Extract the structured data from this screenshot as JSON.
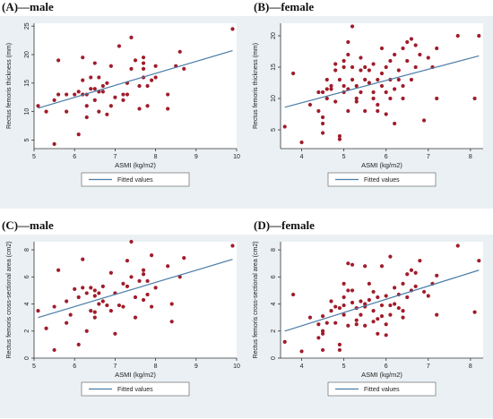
{
  "colors": {
    "point": "#a01c2a",
    "line": "#4a7ca6",
    "plot_bg": "#ffffff",
    "outer_bg": "#eaf0f4"
  },
  "chart_data": [
    {
      "id": "A",
      "type": "scatter",
      "title": "(A)—male",
      "xlabel": "ASMI (kg/m2)",
      "ylabel": "Rectus femoris thickness (mm)",
      "xlim": [
        5,
        10
      ],
      "ylim": [
        3.5,
        25.5
      ],
      "xticks": [
        5,
        6,
        7,
        8,
        9,
        10
      ],
      "yticks": [
        5,
        10,
        15,
        20,
        25
      ],
      "legend": {
        "label": "Fitted values",
        "position": "bottom"
      },
      "fit": {
        "x": [
          5.1,
          9.9
        ],
        "y": [
          10.6,
          20.7
        ]
      },
      "points": [
        [
          5.1,
          11
        ],
        [
          5.3,
          10
        ],
        [
          5.5,
          12
        ],
        [
          5.5,
          4.3
        ],
        [
          5.6,
          19
        ],
        [
          5.6,
          13
        ],
        [
          5.8,
          10
        ],
        [
          5.8,
          13
        ],
        [
          6.0,
          13
        ],
        [
          6.1,
          13.5
        ],
        [
          6.1,
          6
        ],
        [
          6.2,
          13
        ],
        [
          6.2,
          15.5
        ],
        [
          6.2,
          19.5
        ],
        [
          6.3,
          11
        ],
        [
          6.3,
          13
        ],
        [
          6.3,
          9
        ],
        [
          6.4,
          14
        ],
        [
          6.4,
          16
        ],
        [
          6.5,
          14
        ],
        [
          6.5,
          18.5
        ],
        [
          6.5,
          12
        ],
        [
          6.6,
          16
        ],
        [
          6.6,
          13.5
        ],
        [
          6.6,
          10
        ],
        [
          6.7,
          13.5
        ],
        [
          6.7,
          14.5
        ],
        [
          6.8,
          15
        ],
        [
          6.8,
          9.5
        ],
        [
          6.9,
          11
        ],
        [
          6.9,
          18
        ],
        [
          7.0,
          12.5
        ],
        [
          7.1,
          21.5
        ],
        [
          7.2,
          12
        ],
        [
          7.2,
          13
        ],
        [
          7.3,
          15
        ],
        [
          7.3,
          13
        ],
        [
          7.4,
          23
        ],
        [
          7.4,
          17.5
        ],
        [
          7.5,
          19
        ],
        [
          7.6,
          14.5
        ],
        [
          7.6,
          10.5
        ],
        [
          7.7,
          19.5
        ],
        [
          7.7,
          18.5
        ],
        [
          7.7,
          17.5
        ],
        [
          7.7,
          16
        ],
        [
          7.8,
          11
        ],
        [
          7.8,
          14.5
        ],
        [
          7.9,
          15.5
        ],
        [
          8.0,
          18
        ],
        [
          8.0,
          16
        ],
        [
          8.3,
          13
        ],
        [
          8.3,
          10.5
        ],
        [
          8.5,
          18
        ],
        [
          8.6,
          20.5
        ],
        [
          8.7,
          17.5
        ],
        [
          9.9,
          24.5
        ]
      ]
    },
    {
      "id": "B",
      "type": "scatter",
      "title": "(B)—female",
      "xlabel": "ASMI (kg/m2)",
      "ylabel": "Rectus femoris thickness (mm)",
      "xlim": [
        3.5,
        8.3
      ],
      "ylim": [
        2,
        22
      ],
      "xticks": [
        4,
        5,
        6,
        7,
        8
      ],
      "yticks": [
        5,
        10,
        15,
        20
      ],
      "legend": {
        "label": "Fitted values",
        "position": "bottom"
      },
      "fit": {
        "x": [
          3.6,
          8.2
        ],
        "y": [
          8.6,
          16.8
        ]
      },
      "points": [
        [
          3.6,
          5.5
        ],
        [
          3.8,
          14
        ],
        [
          4.0,
          3
        ],
        [
          4.2,
          9
        ],
        [
          4.4,
          11
        ],
        [
          4.4,
          8
        ],
        [
          4.5,
          11
        ],
        [
          4.5,
          6
        ],
        [
          4.5,
          4.5
        ],
        [
          4.5,
          7
        ],
        [
          4.6,
          10
        ],
        [
          4.6,
          11.5
        ],
        [
          4.6,
          13
        ],
        [
          4.7,
          11.5
        ],
        [
          4.7,
          12
        ],
        [
          4.8,
          15.5
        ],
        [
          4.8,
          14.5
        ],
        [
          4.8,
          9.5
        ],
        [
          4.9,
          3.5
        ],
        [
          4.9,
          4
        ],
        [
          4.9,
          13
        ],
        [
          5.0,
          11
        ],
        [
          5.0,
          16
        ],
        [
          5.0,
          12
        ],
        [
          5.0,
          15
        ],
        [
          5.1,
          17
        ],
        [
          5.1,
          19
        ],
        [
          5.1,
          8
        ],
        [
          5.1,
          11.5
        ],
        [
          5.2,
          13
        ],
        [
          5.2,
          21.5
        ],
        [
          5.2,
          15
        ],
        [
          5.3,
          12
        ],
        [
          5.3,
          10
        ],
        [
          5.3,
          9.5
        ],
        [
          5.4,
          14.5
        ],
        [
          5.4,
          11
        ],
        [
          5.4,
          16.5
        ],
        [
          5.5,
          13
        ],
        [
          5.5,
          8
        ],
        [
          5.5,
          15
        ],
        [
          5.6,
          12.5
        ],
        [
          5.6,
          14.5
        ],
        [
          5.7,
          11
        ],
        [
          5.7,
          15.5
        ],
        [
          5.7,
          10
        ],
        [
          5.8,
          13
        ],
        [
          5.8,
          9
        ],
        [
          5.8,
          8
        ],
        [
          5.9,
          14
        ],
        [
          5.9,
          18
        ],
        [
          5.9,
          12
        ],
        [
          6.0,
          11
        ],
        [
          6.0,
          15
        ],
        [
          6.0,
          7.5
        ],
        [
          6.1,
          13
        ],
        [
          6.1,
          16
        ],
        [
          6.1,
          10
        ],
        [
          6.2,
          17
        ],
        [
          6.2,
          11.5
        ],
        [
          6.2,
          6
        ],
        [
          6.3,
          13
        ],
        [
          6.3,
          14.5
        ],
        [
          6.4,
          12
        ],
        [
          6.4,
          18
        ],
        [
          6.4,
          10
        ],
        [
          6.5,
          19
        ],
        [
          6.5,
          16
        ],
        [
          6.6,
          19.5
        ],
        [
          6.6,
          13
        ],
        [
          6.7,
          15
        ],
        [
          6.7,
          18.5
        ],
        [
          6.8,
          17
        ],
        [
          6.9,
          6.5
        ],
        [
          7.0,
          16.5
        ],
        [
          7.1,
          15
        ],
        [
          7.2,
          18
        ],
        [
          7.2,
          10
        ],
        [
          7.7,
          20
        ],
        [
          8.1,
          10
        ],
        [
          8.2,
          20
        ]
      ]
    },
    {
      "id": "C",
      "type": "scatter",
      "title": "(C)—male",
      "xlabel": "ASMI (kg/m2)",
      "ylabel": "Rectus femoris cross-sectional area (cm2)",
      "xlim": [
        5,
        10
      ],
      "ylim": [
        0,
        8.6
      ],
      "xticks": [
        5,
        6,
        7,
        8,
        9,
        10
      ],
      "yticks": [
        0,
        2,
        4,
        6,
        8
      ],
      "legend": {
        "label": "Fitted values",
        "position": "bottom"
      },
      "fit": {
        "x": [
          5.1,
          9.9
        ],
        "y": [
          3.0,
          7.3
        ]
      },
      "points": [
        [
          5.1,
          3.5
        ],
        [
          5.3,
          2.2
        ],
        [
          5.5,
          3.8
        ],
        [
          5.5,
          0.6
        ],
        [
          5.6,
          6.5
        ],
        [
          5.8,
          2.6
        ],
        [
          5.8,
          4.2
        ],
        [
          5.9,
          3.2
        ],
        [
          6.0,
          5.1
        ],
        [
          6.1,
          4.5
        ],
        [
          6.1,
          1.0
        ],
        [
          6.2,
          5.2
        ],
        [
          6.2,
          7.3
        ],
        [
          6.3,
          4.8
        ],
        [
          6.3,
          2.0
        ],
        [
          6.4,
          5.2
        ],
        [
          6.4,
          3.5
        ],
        [
          6.5,
          4.6
        ],
        [
          6.5,
          3.4
        ],
        [
          6.5,
          3.0
        ],
        [
          6.5,
          5.0
        ],
        [
          6.6,
          4.8
        ],
        [
          6.6,
          4.0
        ],
        [
          6.7,
          5.3
        ],
        [
          6.7,
          4.2
        ],
        [
          6.8,
          3.9
        ],
        [
          6.9,
          6.3
        ],
        [
          6.9,
          3.5
        ],
        [
          7.0,
          4.8
        ],
        [
          7.0,
          1.8
        ],
        [
          7.1,
          3.9
        ],
        [
          7.2,
          5.5
        ],
        [
          7.2,
          3.8
        ],
        [
          7.3,
          7.2
        ],
        [
          7.3,
          5.3
        ],
        [
          7.4,
          8.6
        ],
        [
          7.4,
          6.0
        ],
        [
          7.5,
          4.5
        ],
        [
          7.5,
          3.0
        ],
        [
          7.6,
          5.7
        ],
        [
          7.7,
          6.2
        ],
        [
          7.7,
          6.5
        ],
        [
          7.7,
          4.3
        ],
        [
          7.8,
          5.7
        ],
        [
          7.8,
          4.7
        ],
        [
          7.9,
          7.6
        ],
        [
          7.9,
          3.8
        ],
        [
          8.0,
          5.2
        ],
        [
          8.3,
          6.8
        ],
        [
          8.4,
          4.0
        ],
        [
          8.4,
          2.7
        ],
        [
          8.6,
          6.0
        ],
        [
          8.7,
          7.4
        ],
        [
          9.9,
          8.3
        ]
      ]
    },
    {
      "id": "D",
      "type": "scatter",
      "title": "(D)—female",
      "xlabel": "ASMI (kg/m2)",
      "ylabel": "Rectus femoris cross-sectional area (cm2)",
      "xlim": [
        3.5,
        8.3
      ],
      "ylim": [
        0,
        8.6
      ],
      "xticks": [
        4,
        5,
        6,
        7,
        8
      ],
      "yticks": [
        0,
        2,
        4,
        6,
        8
      ],
      "legend": {
        "label": "Fitted values",
        "position": "bottom"
      },
      "fit": {
        "x": [
          3.6,
          8.2
        ],
        "y": [
          2.0,
          6.5
        ]
      },
      "points": [
        [
          3.6,
          1.2
        ],
        [
          3.8,
          4.7
        ],
        [
          4.0,
          0.5
        ],
        [
          4.2,
          3.0
        ],
        [
          4.4,
          2.5
        ],
        [
          4.4,
          1.5
        ],
        [
          4.5,
          3.1
        ],
        [
          4.5,
          1.8
        ],
        [
          4.5,
          0.6
        ],
        [
          4.5,
          2.0
        ],
        [
          4.6,
          2.6
        ],
        [
          4.7,
          3.5
        ],
        [
          4.7,
          4.2
        ],
        [
          4.8,
          3.8
        ],
        [
          4.8,
          2.6
        ],
        [
          4.9,
          1.0
        ],
        [
          4.9,
          0.6
        ],
        [
          4.9,
          3.7
        ],
        [
          5.0,
          3.2
        ],
        [
          5.0,
          5.5
        ],
        [
          5.0,
          3.9
        ],
        [
          5.0,
          4.5
        ],
        [
          5.1,
          5.0
        ],
        [
          5.1,
          7.0
        ],
        [
          5.1,
          2.4
        ],
        [
          5.2,
          4.1
        ],
        [
          5.2,
          6.9
        ],
        [
          5.2,
          5.0
        ],
        [
          5.3,
          3.7
        ],
        [
          5.3,
          2.5
        ],
        [
          5.3,
          2.8
        ],
        [
          5.4,
          4.2
        ],
        [
          5.4,
          3.2
        ],
        [
          5.5,
          6.8
        ],
        [
          5.5,
          4.0
        ],
        [
          5.5,
          2.4
        ],
        [
          5.5,
          3.8
        ],
        [
          5.6,
          4.3
        ],
        [
          5.6,
          5.5
        ],
        [
          5.7,
          3.5
        ],
        [
          5.7,
          4.9
        ],
        [
          5.7,
          2.7
        ],
        [
          5.8,
          4.5
        ],
        [
          5.8,
          2.9
        ],
        [
          5.8,
          1.8
        ],
        [
          5.9,
          3.9
        ],
        [
          5.9,
          6.8
        ],
        [
          5.9,
          3.1
        ],
        [
          6.0,
          2.5
        ],
        [
          6.0,
          4.6
        ],
        [
          6.0,
          1.7
        ],
        [
          6.1,
          3.9
        ],
        [
          6.1,
          7.5
        ],
        [
          6.1,
          3.2
        ],
        [
          6.2,
          5.2
        ],
        [
          6.2,
          4.0
        ],
        [
          6.3,
          3.7
        ],
        [
          6.3,
          4.7
        ],
        [
          6.4,
          3.5
        ],
        [
          6.4,
          5.5
        ],
        [
          6.4,
          3.0
        ],
        [
          6.5,
          4.5
        ],
        [
          6.5,
          6.2
        ],
        [
          6.6,
          6.5
        ],
        [
          6.6,
          5.0
        ],
        [
          6.7,
          5.3
        ],
        [
          6.7,
          6.3
        ],
        [
          6.8,
          7.2
        ],
        [
          6.9,
          4.9
        ],
        [
          7.0,
          4.6
        ],
        [
          7.1,
          5.5
        ],
        [
          7.2,
          6.1
        ],
        [
          7.2,
          3.2
        ],
        [
          7.7,
          8.3
        ],
        [
          8.1,
          3.4
        ],
        [
          8.2,
          7.2
        ]
      ]
    }
  ]
}
